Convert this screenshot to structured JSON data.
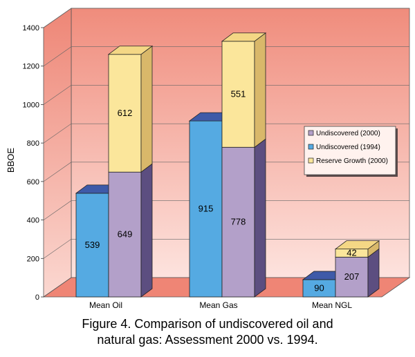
{
  "chart_data": {
    "type": "bar",
    "style": "3d-stacked-and-grouped",
    "ylabel": "BBOE",
    "ylim": [
      0,
      1400
    ],
    "yticks": [
      0,
      200,
      400,
      600,
      800,
      1000,
      1200,
      1400
    ],
    "grid": true,
    "categories": [
      "Mean Oil",
      "Mean Gas",
      "Mean NGL"
    ],
    "series": [
      {
        "name": "Undiscovered (2000)",
        "values": [
          649,
          778,
          207
        ],
        "stack": "2000",
        "color": "#b3a0c9"
      },
      {
        "name": "Undiscovered (1994)",
        "values": [
          539,
          915,
          90
        ],
        "stack": "1994",
        "color": "#55aae2"
      },
      {
        "name": "Reserve Growth (2000)",
        "values": [
          612,
          551,
          42
        ],
        "stack": "2000",
        "color": "#fbe69b"
      }
    ],
    "legend_position": "right"
  },
  "caption": {
    "line1": "Figure 4.  Comparison of undiscovered oil and",
    "line2": "natural gas: Assessment 2000 vs. 1994."
  }
}
